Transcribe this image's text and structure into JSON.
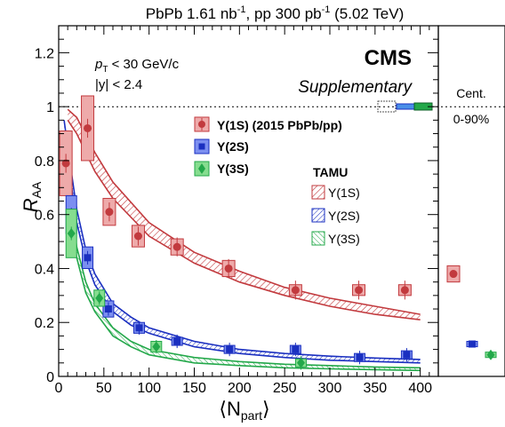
{
  "header": {
    "title_lead": "PbPb 1.61 nb",
    "title_sup1": "-1",
    "title_mid": ", pp 300 pb",
    "title_sup2": "-1",
    "title_tail": " (5.02 TeV)"
  },
  "branding": {
    "cms": "CMS",
    "supplementary": "Supplementary"
  },
  "cuts": {
    "pt_p": "p",
    "pt_sub": "T",
    "pt_rest": " < 30 GeV/c",
    "y_text": "|y| < 2.4"
  },
  "centrality_panel": {
    "label": "Cent.",
    "range": "0-90%"
  },
  "axes": {
    "ylabel_main": "R",
    "ylabel_sub": "AA",
    "xlabel_open": "⟨N",
    "xlabel_sub": "part",
    "xlabel_close": "⟩",
    "xticks": [
      "0",
      "50",
      "100",
      "150",
      "200",
      "250",
      "300",
      "350",
      "400"
    ],
    "yticks": [
      "0",
      "0.2",
      "0.4",
      "0.6",
      "0.8",
      "1",
      "1.2"
    ]
  },
  "legend": {
    "data_title": "",
    "data_entries": [
      "Υ(1S) (2015 PbPb/pp)",
      "Υ(2S)",
      "Υ(3S)"
    ],
    "model_title": "TAMU",
    "model_entries": [
      "Υ(1S)",
      "Υ(2S)",
      "Υ(3S)"
    ]
  },
  "colors": {
    "ups1s": "#c23a3e",
    "ups1s_fill": "#eeaaaa",
    "ups2s": "#1a2fc0",
    "ups2s_fill": "#7c8ff0",
    "ups3s": "#23a84a",
    "ups3s_fill": "#86dd8f"
  },
  "chart_data": {
    "type": "scatter",
    "title": "PbPb 1.61 nb^-1, pp 300 pb^-1 (5.02 TeV)",
    "xlabel": "⟨N_part⟩",
    "ylabel": "R_AA",
    "xlim": [
      0,
      420
    ],
    "ylim": [
      0,
      1.3
    ],
    "reference_line_y": 1,
    "grid": false,
    "legend_position": "top-right",
    "series": [
      {
        "name": "Υ(1S) (2015 PbPb/pp)",
        "marker": "circle",
        "x": [
          8,
          32,
          56,
          88,
          131,
          188,
          262,
          332,
          383
        ],
        "y": [
          0.79,
          0.92,
          0.61,
          0.52,
          0.48,
          0.4,
          0.32,
          0.32,
          0.32
        ],
        "syst": [
          0.12,
          0.12,
          0.05,
          0.04,
          0.03,
          0.03,
          0.02,
          0.02,
          0.02
        ]
      },
      {
        "name": "Υ(2S)",
        "marker": "square",
        "x": [
          14,
          32,
          55,
          89,
          131,
          189,
          262,
          333,
          385
        ],
        "y": [
          0.6,
          0.44,
          0.25,
          0.18,
          0.13,
          0.1,
          0.1,
          0.07,
          0.08
        ],
        "syst": [
          0.07,
          0.04,
          0.03,
          0.02,
          0.015,
          0.015,
          0.015,
          0.015,
          0.015
        ]
      },
      {
        "name": "Υ(3S)",
        "marker": "diamond",
        "x": [
          14,
          45,
          108,
          268
        ],
        "y": [
          0.53,
          0.29,
          0.11,
          0.05
        ],
        "syst": [
          0.09,
          0.03,
          0.02,
          0.015
        ]
      }
    ],
    "integrated": {
      "label": "0-90%",
      "ups1s": 0.38,
      "ups2s": 0.12,
      "ups3s": 0.08
    },
    "models": [
      {
        "name": "TAMU Υ(1S)",
        "x": [
          10,
          20,
          40,
          60,
          100,
          150,
          200,
          250,
          300,
          350,
          400
        ],
        "upper": [
          0.99,
          0.96,
          0.83,
          0.72,
          0.57,
          0.46,
          0.39,
          0.33,
          0.29,
          0.26,
          0.23
        ],
        "lower": [
          0.95,
          0.9,
          0.76,
          0.66,
          0.52,
          0.42,
          0.35,
          0.3,
          0.26,
          0.23,
          0.21
        ]
      },
      {
        "name": "TAMU Υ(2S)",
        "x": [
          6,
          10,
          20,
          30,
          40,
          60,
          80,
          100,
          150,
          200,
          250,
          300,
          350,
          400
        ],
        "upper": [
          0.95,
          0.85,
          0.62,
          0.47,
          0.38,
          0.27,
          0.22,
          0.18,
          0.13,
          0.1,
          0.085,
          0.075,
          0.068,
          0.063
        ],
        "lower": [
          0.9,
          0.8,
          0.57,
          0.43,
          0.34,
          0.24,
          0.19,
          0.16,
          0.11,
          0.085,
          0.07,
          0.06,
          0.055,
          0.05
        ]
      },
      {
        "name": "TAMU Υ(3S)",
        "x": [
          6,
          10,
          20,
          30,
          40,
          60,
          80,
          100,
          150,
          200,
          250,
          300,
          350,
          400
        ],
        "upper": [
          0.9,
          0.75,
          0.48,
          0.35,
          0.27,
          0.18,
          0.13,
          0.1,
          0.07,
          0.055,
          0.045,
          0.04,
          0.035,
          0.032
        ],
        "lower": [
          0.85,
          0.7,
          0.44,
          0.31,
          0.24,
          0.15,
          0.11,
          0.08,
          0.05,
          0.04,
          0.032,
          0.028,
          0.025,
          0.022
        ]
      }
    ]
  }
}
